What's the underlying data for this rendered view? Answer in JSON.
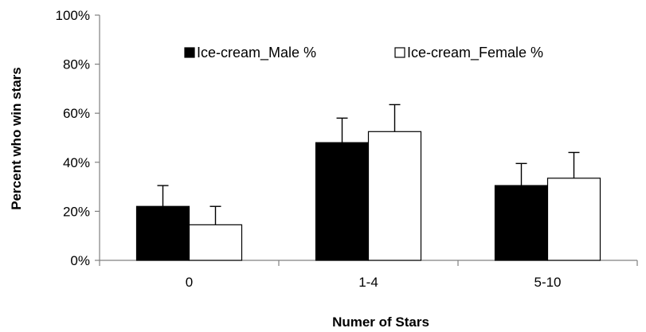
{
  "chart_data": {
    "type": "bar",
    "categories": [
      "0",
      "1-4",
      "5-10"
    ],
    "series": [
      {
        "name": "Ice-cream_Male %",
        "values": [
          22,
          48,
          30.5
        ],
        "errors": [
          8.5,
          10,
          9
        ],
        "color": "#000000"
      },
      {
        "name": "Ice-cream_Female %",
        "values": [
          14.5,
          52.5,
          33.5
        ],
        "errors": [
          7.5,
          11,
          10.5
        ],
        "color": "#ffffff"
      }
    ],
    "xlabel": "Numer of Stars",
    "ylabel": "Percent who win stars",
    "ylim": [
      0,
      100
    ],
    "yticks": [
      0,
      20,
      40,
      60,
      80,
      100
    ],
    "ytick_labels": [
      "0%",
      "20%",
      "40%",
      "60%",
      "80%",
      "100%"
    ],
    "grid": false,
    "legend_position": "top-center"
  }
}
